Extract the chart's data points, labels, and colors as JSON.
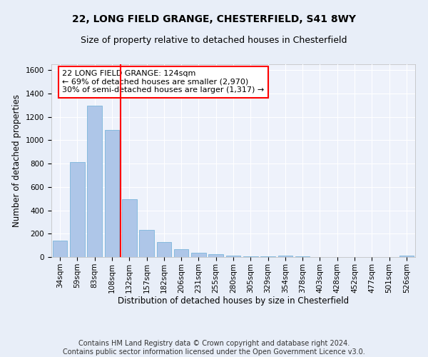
{
  "title": "22, LONG FIELD GRANGE, CHESTERFIELD, S41 8WY",
  "subtitle": "Size of property relative to detached houses in Chesterfield",
  "xlabel": "Distribution of detached houses by size in Chesterfield",
  "ylabel": "Number of detached properties",
  "categories": [
    "34sqm",
    "59sqm",
    "83sqm",
    "108sqm",
    "132sqm",
    "157sqm",
    "182sqm",
    "206sqm",
    "231sqm",
    "255sqm",
    "280sqm",
    "305sqm",
    "329sqm",
    "354sqm",
    "378sqm",
    "403sqm",
    "428sqm",
    "452sqm",
    "477sqm",
    "501sqm",
    "526sqm"
  ],
  "values": [
    140,
    815,
    1295,
    1090,
    495,
    230,
    130,
    65,
    35,
    25,
    15,
    5,
    5,
    15,
    5,
    0,
    0,
    0,
    0,
    0,
    15
  ],
  "bar_color": "#aec6e8",
  "bar_edge_color": "#6aaed6",
  "vline_color": "red",
  "annotation_text": "22 LONG FIELD GRANGE: 124sqm\n← 69% of detached houses are smaller (2,970)\n30% of semi-detached houses are larger (1,317) →",
  "annotation_box_color": "white",
  "annotation_box_edge": "red",
  "ylim": [
    0,
    1650
  ],
  "yticks": [
    0,
    200,
    400,
    600,
    800,
    1000,
    1200,
    1400,
    1600
  ],
  "footer": "Contains HM Land Registry data © Crown copyright and database right 2024.\nContains public sector information licensed under the Open Government Licence v3.0.",
  "bg_color": "#e8eef8",
  "plot_bg_color": "#eef2fb",
  "grid_color": "#ffffff",
  "title_fontsize": 10,
  "subtitle_fontsize": 9,
  "axis_label_fontsize": 8.5,
  "tick_fontsize": 7.5,
  "annotation_fontsize": 8,
  "footer_fontsize": 7
}
